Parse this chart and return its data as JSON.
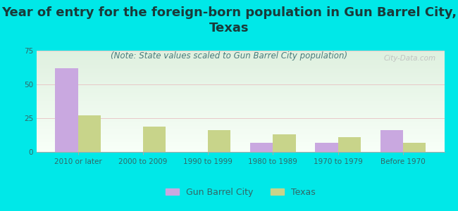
{
  "title": "Year of entry for the foreign-born population in Gun Barrel City,\nTexas",
  "subtitle": "(Note: State values scaled to Gun Barrel City population)",
  "categories": [
    "2010 or later",
    "2000 to 2009",
    "1990 to 1999",
    "1980 to 1989",
    "1970 to 1979",
    "Before 1970"
  ],
  "gbc_values": [
    62,
    0,
    0,
    7,
    7,
    16
  ],
  "tx_values": [
    27,
    19,
    16,
    13,
    11,
    7
  ],
  "gbc_color": "#c9a8e0",
  "tx_color": "#c8d48a",
  "background_color": "#00e8e8",
  "title_color": "#1a3a3a",
  "subtitle_color": "#4a7a7a",
  "ylim": [
    0,
    75
  ],
  "yticks": [
    0,
    25,
    50,
    75
  ],
  "legend_labels": [
    "Gun Barrel City",
    "Texas"
  ],
  "bar_width": 0.35,
  "watermark": "City-Data.com",
  "title_fontsize": 13,
  "subtitle_fontsize": 8.5,
  "tick_fontsize": 7.5,
  "legend_fontsize": 9
}
